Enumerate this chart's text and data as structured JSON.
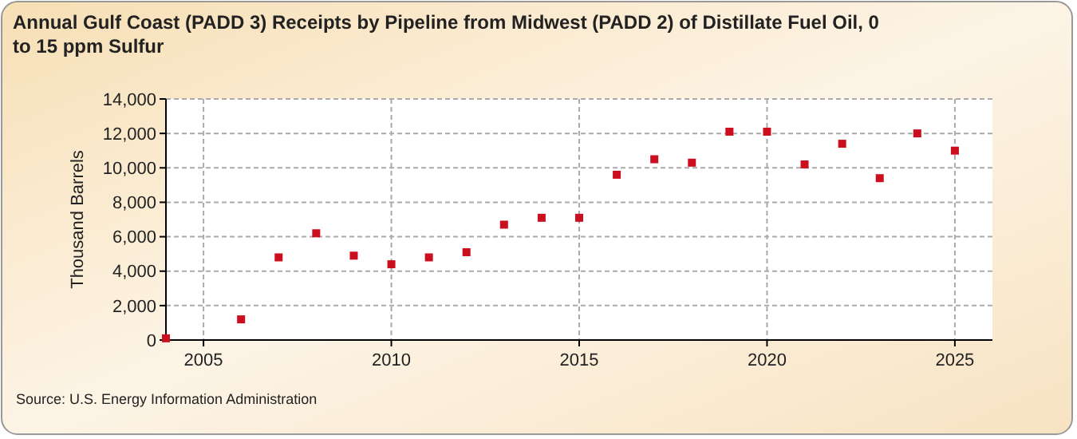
{
  "chart_data": {
    "type": "scatter",
    "title": "Annual Gulf Coast (PADD 3) Receipts by Pipeline from Midwest (PADD 2) of Distillate Fuel Oil, 0 to 15 ppm Sulfur",
    "ylabel": "Thousand Barrels",
    "x": [
      2004,
      2006,
      2007,
      2008,
      2009,
      2010,
      2011,
      2012,
      2013,
      2014,
      2015,
      2016,
      2017,
      2018,
      2019,
      2020,
      2021,
      2022,
      2023,
      2024,
      2025
    ],
    "series": [
      {
        "color": "#cc0f1e",
        "values": [
          100,
          1200,
          4800,
          6200,
          4900,
          4400,
          4800,
          5100,
          6700,
          7100,
          7100,
          9600,
          10500,
          10300,
          12100,
          12100,
          10200,
          11400,
          9400,
          12000,
          11000
        ]
      }
    ],
    "xlim": [
      2004,
      2026
    ],
    "xticks": [
      2005,
      2010,
      2015,
      2020,
      2025
    ],
    "ylim": [
      0,
      14000
    ],
    "yticks": [
      {
        "value": 0,
        "label": "0"
      },
      {
        "value": 2000,
        "label": "2,000"
      },
      {
        "value": 4000,
        "label": "4,000"
      },
      {
        "value": 6000,
        "label": "6,000"
      },
      {
        "value": 8000,
        "label": "8,000"
      },
      {
        "value": 10000,
        "label": "10,000"
      },
      {
        "value": 12000,
        "label": "12,000"
      },
      {
        "value": 14000,
        "label": "14,000"
      }
    ],
    "grid": true,
    "marker": "square",
    "annotations": [
      "Source: U.S. Energy Information Administration"
    ]
  }
}
